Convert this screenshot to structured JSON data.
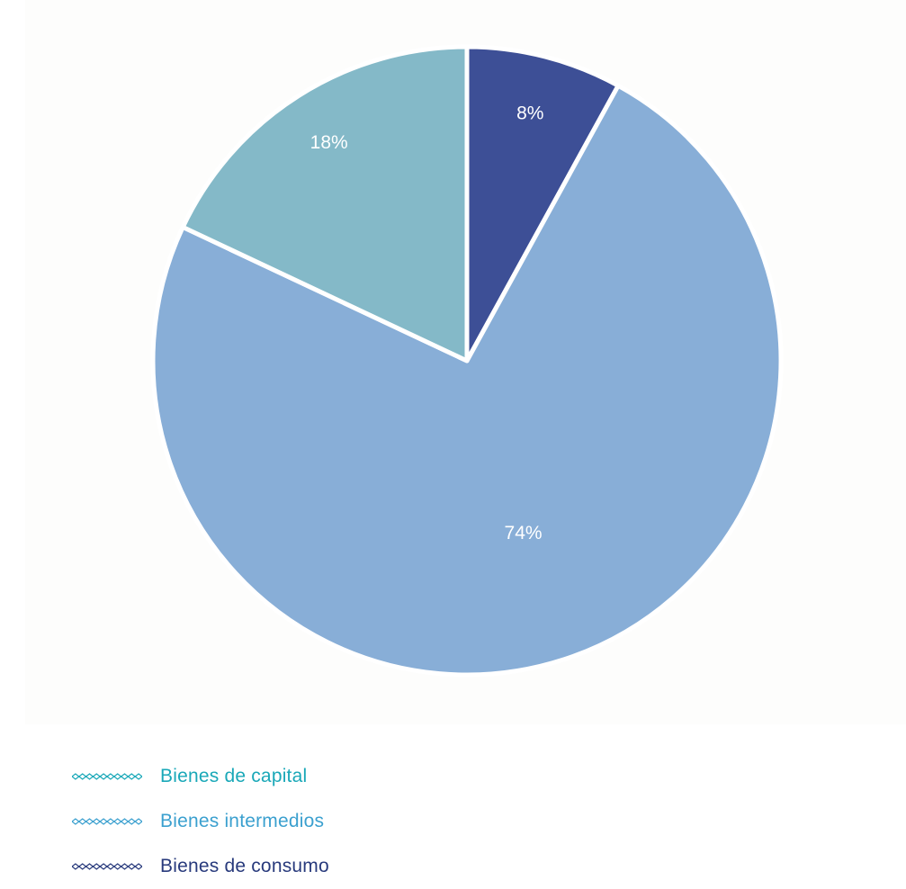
{
  "chart_data": {
    "type": "pie",
    "slices": [
      {
        "name": "Bienes de consumo",
        "value": 8,
        "label": "8%",
        "color": "#3d4f96"
      },
      {
        "name": "Bienes intermedios",
        "value": 74,
        "label": "74%",
        "color": "#88aed7"
      },
      {
        "name": "Bienes de capital",
        "value": 18,
        "label": "18%",
        "color": "#84b9c8"
      }
    ],
    "start": "12 o'clock",
    "direction": "clockwise",
    "legend": {
      "placement": "bottom-left",
      "items": [
        {
          "label": "Bienes de capital",
          "color": "#1aa8b8"
        },
        {
          "label": "Bienes intermedios",
          "color": "#3ba0cf"
        },
        {
          "label": "Bienes de consumo",
          "color": "#283a7c"
        }
      ]
    }
  }
}
